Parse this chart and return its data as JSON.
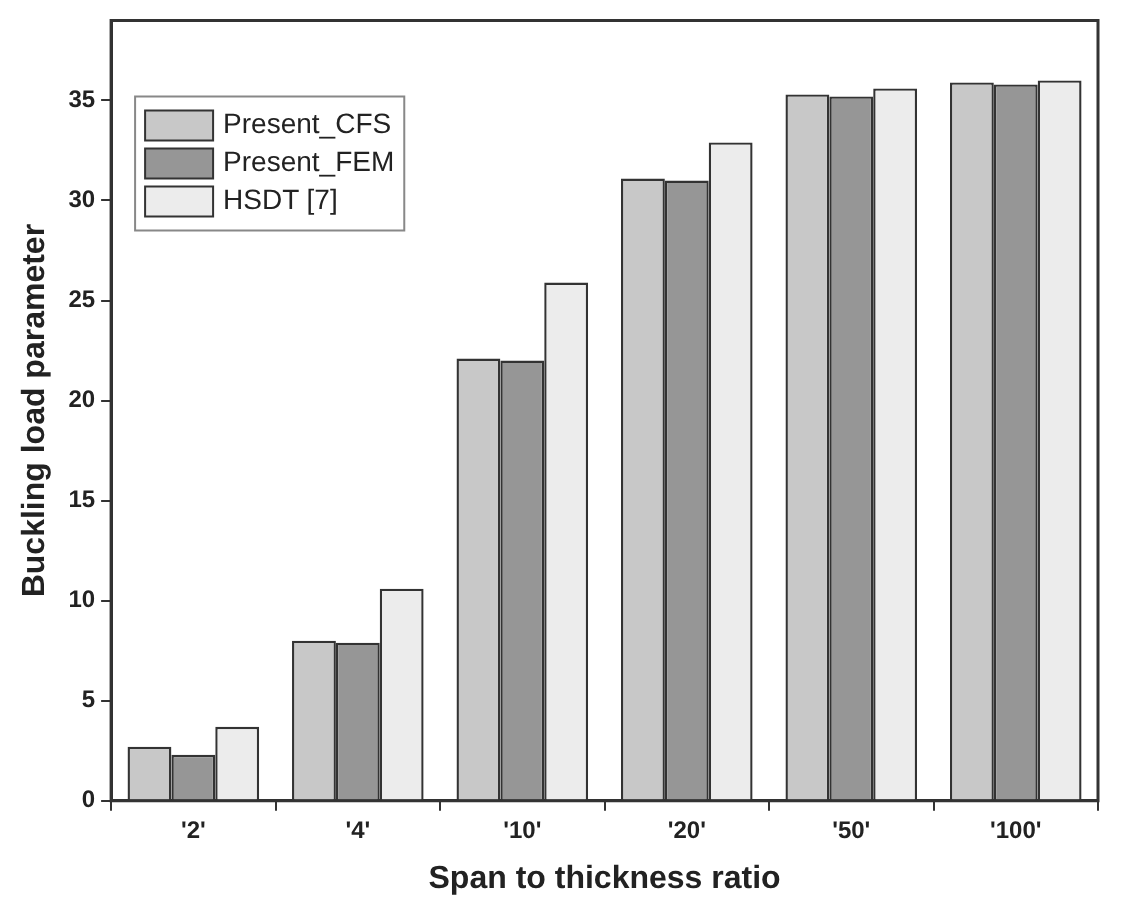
{
  "chart_data": {
    "type": "bar",
    "xlabel": "Span to thickness ratio",
    "ylabel": "Buckling load parameter",
    "categories": [
      "'2'",
      "'4'",
      "'10'",
      "'20'",
      "'50'",
      "'100'"
    ],
    "series": [
      {
        "name": "Present_CFS",
        "color": "#c8c8c8",
        "values": [
          2.7,
          8.0,
          22.1,
          31.1,
          35.3,
          35.9
        ]
      },
      {
        "name": "Present_FEM",
        "color": "#969696",
        "values": [
          2.3,
          7.9,
          22.0,
          31.0,
          35.2,
          35.8
        ]
      },
      {
        "name": "HSDT [7]",
        "color": "#ececec",
        "values": [
          3.7,
          10.6,
          25.9,
          32.9,
          35.6,
          36.0
        ]
      }
    ],
    "ylim": [
      0,
      39
    ],
    "yticks": [
      0,
      5,
      10,
      15,
      20,
      25,
      30,
      35
    ],
    "grid": false,
    "legend": "top left"
  }
}
